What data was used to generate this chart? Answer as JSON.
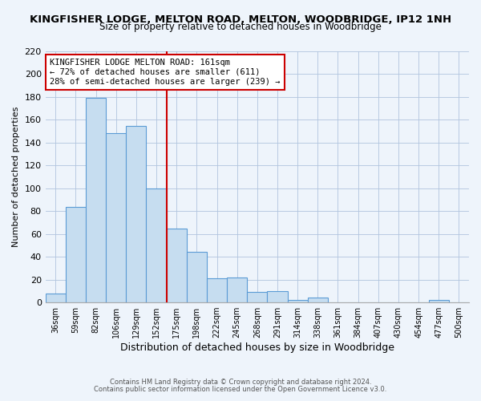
{
  "title": "KINGFISHER LODGE, MELTON ROAD, MELTON, WOODBRIDGE, IP12 1NH",
  "subtitle": "Size of property relative to detached houses in Woodbridge",
  "xlabel": "Distribution of detached houses by size in Woodbridge",
  "ylabel": "Number of detached properties",
  "bar_labels": [
    "36sqm",
    "59sqm",
    "82sqm",
    "106sqm",
    "129sqm",
    "152sqm",
    "175sqm",
    "198sqm",
    "222sqm",
    "245sqm",
    "268sqm",
    "291sqm",
    "314sqm",
    "338sqm",
    "361sqm",
    "384sqm",
    "407sqm",
    "430sqm",
    "454sqm",
    "477sqm",
    "500sqm"
  ],
  "bar_heights": [
    8,
    84,
    179,
    148,
    155,
    100,
    65,
    44,
    21,
    22,
    9,
    10,
    2,
    4,
    0,
    0,
    0,
    0,
    0,
    2,
    0
  ],
  "bar_color": "#c6ddf0",
  "bar_edge_color": "#5b9bd5",
  "reference_line_x": 5.5,
  "annotation_text": "KINGFISHER LODGE MELTON ROAD: 161sqm\n← 72% of detached houses are smaller (611)\n28% of semi-detached houses are larger (239) →",
  "ylim": [
    0,
    220
  ],
  "yticks": [
    0,
    20,
    40,
    60,
    80,
    100,
    120,
    140,
    160,
    180,
    200,
    220
  ],
  "footer1": "Contains HM Land Registry data © Crown copyright and database right 2024.",
  "footer2": "Contains public sector information licensed under the Open Government Licence v3.0.",
  "bg_color": "#eef4fb",
  "plot_bg_color": "#eef4fb",
  "grid_color": "#b0c4de",
  "title_fontsize": 9.5,
  "subtitle_fontsize": 8.5,
  "ref_line_color": "#cc0000",
  "ann_box_color": "#cc0000"
}
